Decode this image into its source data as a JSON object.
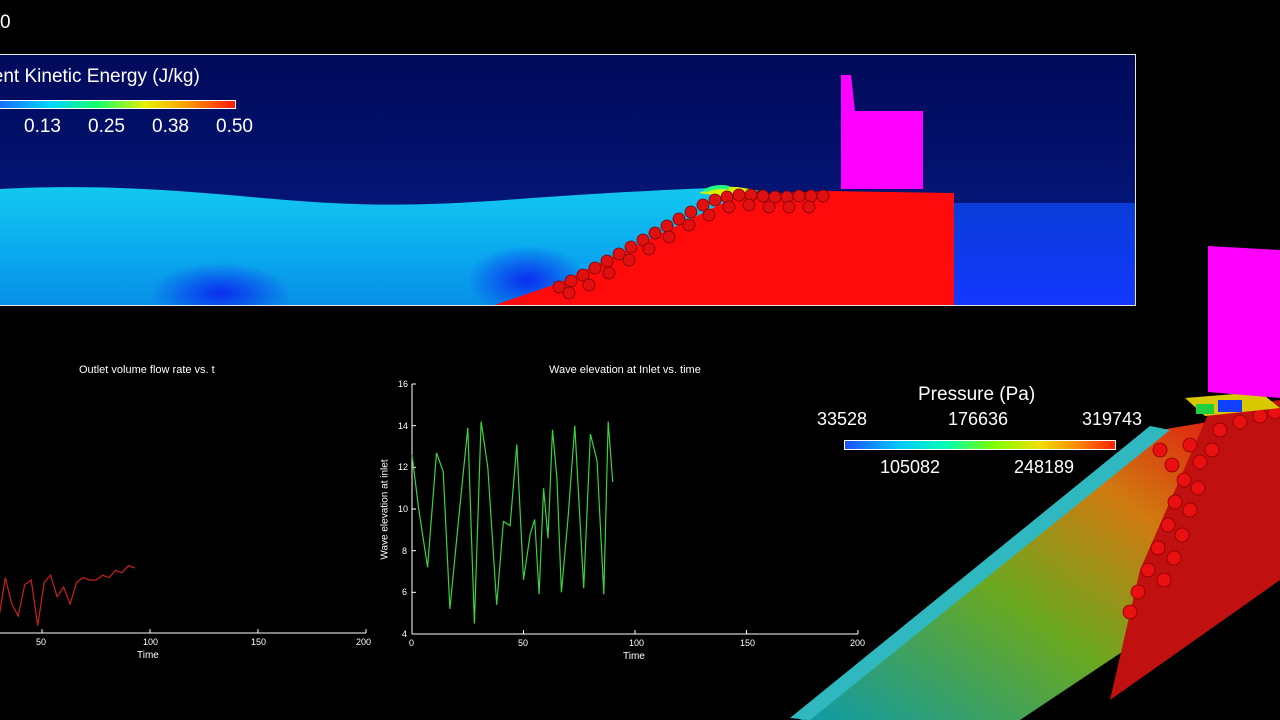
{
  "frame_label": "0",
  "tke_legend": {
    "title": "ulent Kinetic Energy  (J/kg)",
    "ticks": [
      "0.13",
      "0.25",
      "0.38",
      "0.50"
    ]
  },
  "pressure_legend": {
    "title": "Pressure (Pa)",
    "top_ticks": [
      "33528",
      "176636",
      "319743"
    ],
    "bottom_ticks": [
      "105082",
      "248189"
    ]
  },
  "plot_left": {
    "title": "Outlet volume flow rate vs. t",
    "xlabel": "Time",
    "xticks": [
      "50",
      "100",
      "150",
      "200"
    ]
  },
  "plot_right": {
    "title": "Wave elevation at Inlet vs. time",
    "xlabel": "Time",
    "ylabel": "Wave elevation at inlet",
    "xticks": [
      "0",
      "50",
      "100",
      "150",
      "200"
    ],
    "yticks": [
      "4",
      "6",
      "8",
      "10",
      "12",
      "14",
      "16"
    ]
  },
  "chart_data": [
    {
      "type": "line",
      "title": "Outlet volume flow rate vs. t",
      "xlabel": "Time",
      "xlim": [
        0,
        200
      ],
      "series": [
        {
          "color": "#c82020",
          "x": [
            0,
            3,
            6,
            9,
            12,
            15,
            18,
            21,
            24,
            27,
            30,
            33,
            36,
            39,
            42,
            45,
            48,
            51,
            54,
            57,
            60,
            63,
            66,
            69,
            72,
            75,
            78,
            81,
            84,
            87,
            90,
            93
          ],
          "y": [
            0.2,
            0.26,
            0.06,
            0.3,
            0.1,
            0.04,
            0.24,
            0.3,
            0.22,
            0.34,
            0.18,
            0.52,
            0.3,
            0.2,
            0.46,
            0.5,
            0.12,
            0.48,
            0.54,
            0.36,
            0.44,
            0.3,
            0.48,
            0.52,
            0.5,
            0.5,
            0.54,
            0.52,
            0.58,
            0.56,
            0.62,
            0.6
          ]
        }
      ]
    },
    {
      "type": "line",
      "title": "Wave elevation at Inlet vs. time",
      "xlabel": "Time",
      "ylabel": "Wave elevation at inlet",
      "xlim": [
        0,
        200
      ],
      "ylim": [
        4,
        16
      ],
      "series": [
        {
          "color": "#3cd23c",
          "x": [
            0,
            3,
            7,
            11,
            14,
            17,
            21,
            25,
            28,
            31,
            34,
            38,
            41,
            44,
            47,
            50,
            53,
            55,
            57,
            59,
            61,
            63,
            65,
            67,
            70,
            73,
            77,
            80,
            83,
            86,
            88,
            90
          ],
          "y": [
            12.6,
            10.0,
            7.2,
            12.7,
            11.8,
            5.2,
            9.6,
            13.9,
            4.5,
            14.2,
            12.0,
            5.4,
            9.4,
            9.2,
            13.1,
            6.6,
            8.8,
            9.5,
            5.9,
            11.0,
            8.6,
            13.8,
            11.5,
            6.0,
            9.6,
            14.0,
            6.2,
            13.6,
            12.3,
            5.9,
            14.2,
            11.3
          ]
        }
      ]
    }
  ]
}
